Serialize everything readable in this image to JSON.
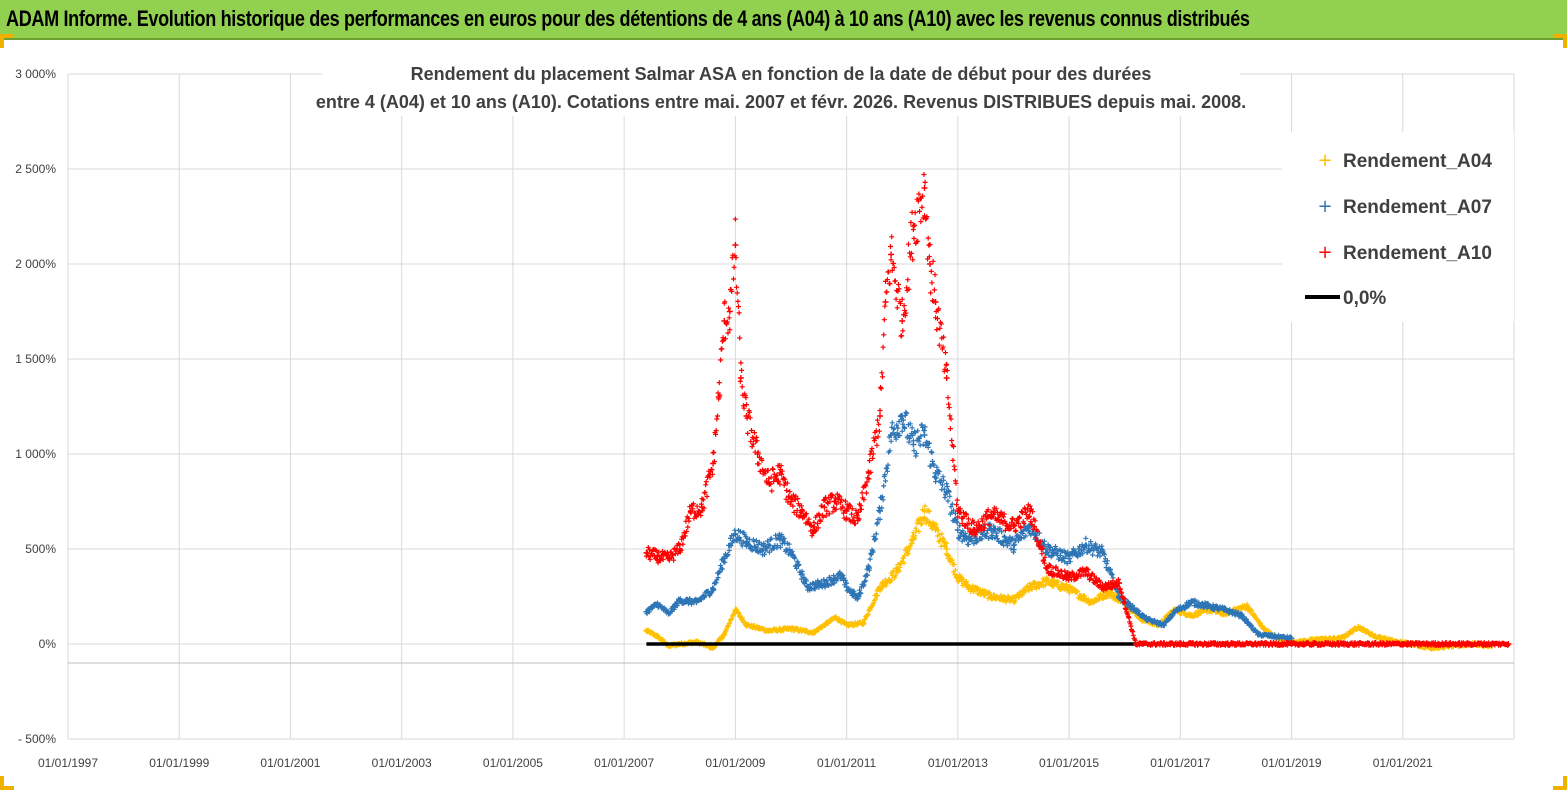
{
  "banner": {
    "title": "ADAM Informe. Evolution historique des performances en euros pour des détentions de 4 ans (A04) à 10 ans (A10) avec les revenus connus distribués"
  },
  "colors": {
    "banner": "#92d050",
    "a04": "#ffc000",
    "a07": "#2e75b6",
    "a10": "#ff0000",
    "zero": "#000000",
    "grid": "#d9d9d9"
  },
  "chart_data": {
    "type": "scatter",
    "title_lines": [
      "Rendement du placement Salmar ASA en fonction de la date de début pour des durées",
      "entre 4 (A04) et 10 ans (A10). Cotations entre mai. 2007 et févr. 2026. Revenus DISTRIBUES depuis mai. 2008."
    ],
    "x_axis": {
      "type": "date",
      "range": [
        1997.0,
        2023.0
      ],
      "tick_years": [
        1997,
        1999,
        2001,
        2003,
        2005,
        2007,
        2009,
        2011,
        2013,
        2015,
        2017,
        2019,
        2021
      ],
      "tick_labels": [
        "01/01/1997",
        "01/01/1999",
        "01/01/2001",
        "01/01/2003",
        "01/01/2005",
        "01/01/2007",
        "01/01/2009",
        "01/01/2011",
        "01/01/2013",
        "01/01/2015",
        "01/01/2017",
        "01/01/2019",
        "01/01/2021"
      ]
    },
    "y_axis": {
      "range": [
        -500,
        3000
      ],
      "ticks": [
        -500,
        0,
        500,
        1000,
        1500,
        2000,
        2500,
        3000
      ],
      "tick_labels": [
        "- 500%",
        "0%",
        "500%",
        "1 000%",
        "1 500%",
        "2 000%",
        "2 500%",
        "3 000%"
      ],
      "unit": "%"
    },
    "grid": true,
    "legend_position": "top-right",
    "series": [
      {
        "name": "Rendement_A04",
        "key": "a04",
        "marker": "+",
        "points": [
          [
            2007.4,
            70
          ],
          [
            2007.6,
            40
          ],
          [
            2007.8,
            -10
          ],
          [
            2008.0,
            0
          ],
          [
            2008.3,
            10
          ],
          [
            2008.6,
            -20
          ],
          [
            2008.8,
            50
          ],
          [
            2009.0,
            180
          ],
          [
            2009.2,
            100
          ],
          [
            2009.6,
            70
          ],
          [
            2010.0,
            80
          ],
          [
            2010.4,
            60
          ],
          [
            2010.8,
            140
          ],
          [
            2011.0,
            100
          ],
          [
            2011.3,
            110
          ],
          [
            2011.6,
            300
          ],
          [
            2011.9,
            380
          ],
          [
            2012.2,
            550
          ],
          [
            2012.4,
            700
          ],
          [
            2012.6,
            600
          ],
          [
            2012.8,
            500
          ],
          [
            2013.0,
            350
          ],
          [
            2013.2,
            300
          ],
          [
            2013.6,
            250
          ],
          [
            2014.0,
            230
          ],
          [
            2014.3,
            300
          ],
          [
            2014.6,
            330
          ],
          [
            2015.0,
            290
          ],
          [
            2015.4,
            220
          ],
          [
            2015.7,
            270
          ],
          [
            2016.0,
            220
          ],
          [
            2016.3,
            130
          ],
          [
            2016.6,
            100
          ],
          [
            2016.9,
            180
          ],
          [
            2017.2,
            150
          ],
          [
            2017.5,
            180
          ],
          [
            2017.8,
            160
          ],
          [
            2018.2,
            200
          ],
          [
            2018.5,
            80
          ],
          [
            2018.8,
            20
          ],
          [
            2019.1,
            10
          ],
          [
            2019.5,
            25
          ],
          [
            2019.9,
            30
          ],
          [
            2020.2,
            90
          ],
          [
            2020.5,
            40
          ],
          [
            2020.9,
            10
          ],
          [
            2021.2,
            0
          ],
          [
            2021.5,
            -20
          ],
          [
            2021.9,
            -10
          ],
          [
            2022.3,
            0
          ],
          [
            2022.6,
            -10
          ]
        ]
      },
      {
        "name": "Rendement_A07",
        "key": "a07",
        "marker": "+",
        "points": [
          [
            2007.4,
            170
          ],
          [
            2007.6,
            210
          ],
          [
            2007.8,
            160
          ],
          [
            2008.0,
            230
          ],
          [
            2008.3,
            220
          ],
          [
            2008.6,
            290
          ],
          [
            2008.8,
            450
          ],
          [
            2009.0,
            580
          ],
          [
            2009.2,
            540
          ],
          [
            2009.5,
            500
          ],
          [
            2009.8,
            550
          ],
          [
            2010.0,
            480
          ],
          [
            2010.3,
            300
          ],
          [
            2010.6,
            320
          ],
          [
            2010.9,
            360
          ],
          [
            2011.0,
            300
          ],
          [
            2011.2,
            240
          ],
          [
            2011.4,
            400
          ],
          [
            2011.6,
            700
          ],
          [
            2011.8,
            1100
          ],
          [
            2012.0,
            1200
          ],
          [
            2012.2,
            1050
          ],
          [
            2012.4,
            1100
          ],
          [
            2012.6,
            900
          ],
          [
            2012.8,
            800
          ],
          [
            2013.0,
            600
          ],
          [
            2013.2,
            550
          ],
          [
            2013.6,
            600
          ],
          [
            2014.0,
            520
          ],
          [
            2014.3,
            620
          ],
          [
            2014.6,
            500
          ],
          [
            2015.0,
            450
          ],
          [
            2015.3,
            520
          ],
          [
            2015.6,
            480
          ],
          [
            2015.9,
            250
          ],
          [
            2016.1,
            200
          ],
          [
            2016.4,
            130
          ],
          [
            2016.7,
            100
          ],
          [
            2016.9,
            170
          ],
          [
            2017.2,
            220
          ],
          [
            2017.5,
            200
          ],
          [
            2017.8,
            180
          ],
          [
            2018.1,
            150
          ],
          [
            2018.4,
            50
          ],
          [
            2018.7,
            40
          ],
          [
            2019.0,
            30
          ]
        ]
      },
      {
        "name": "Rendement_A10",
        "key": "a10",
        "marker": "+",
        "points": [
          [
            2007.4,
            480
          ],
          [
            2007.6,
            460
          ],
          [
            2007.8,
            450
          ],
          [
            2008.0,
            500
          ],
          [
            2008.2,
            700
          ],
          [
            2008.4,
            720
          ],
          [
            2008.6,
            950
          ],
          [
            2008.7,
            1300
          ],
          [
            2008.8,
            1700
          ],
          [
            2008.9,
            1750
          ],
          [
            2009.0,
            2100
          ],
          [
            2009.1,
            1400
          ],
          [
            2009.2,
            1200
          ],
          [
            2009.4,
            1000
          ],
          [
            2009.6,
            850
          ],
          [
            2009.8,
            900
          ],
          [
            2010.0,
            750
          ],
          [
            2010.2,
            700
          ],
          [
            2010.4,
            600
          ],
          [
            2010.6,
            720
          ],
          [
            2010.8,
            750
          ],
          [
            2011.0,
            700
          ],
          [
            2011.2,
            650
          ],
          [
            2011.4,
            900
          ],
          [
            2011.6,
            1200
          ],
          [
            2011.7,
            1800
          ],
          [
            2011.8,
            2050
          ],
          [
            2012.0,
            1700
          ],
          [
            2012.2,
            2200
          ],
          [
            2012.4,
            2400
          ],
          [
            2012.5,
            2000
          ],
          [
            2012.6,
            1800
          ],
          [
            2012.8,
            1400
          ],
          [
            2013.0,
            700
          ],
          [
            2013.3,
            600
          ],
          [
            2013.6,
            680
          ],
          [
            2014.0,
            620
          ],
          [
            2014.3,
            700
          ],
          [
            2014.6,
            400
          ],
          [
            2015.0,
            350
          ],
          [
            2015.3,
            380
          ],
          [
            2015.6,
            300
          ],
          [
            2015.9,
            320
          ],
          [
            2016.2,
            0
          ],
          [
            2017.0,
            0
          ],
          [
            2018.0,
            0
          ],
          [
            2019.0,
            0
          ],
          [
            2020.0,
            0
          ],
          [
            2021.0,
            0
          ],
          [
            2022.0,
            0
          ],
          [
            2022.9,
            0
          ]
        ]
      }
    ],
    "zero_line": {
      "name": "0,0%",
      "value": 0,
      "x_range": [
        2007.4,
        2022.9
      ]
    },
    "legend": [
      "Rendement_A04",
      "Rendement_A07",
      "Rendement_A10",
      "0,0%"
    ]
  }
}
